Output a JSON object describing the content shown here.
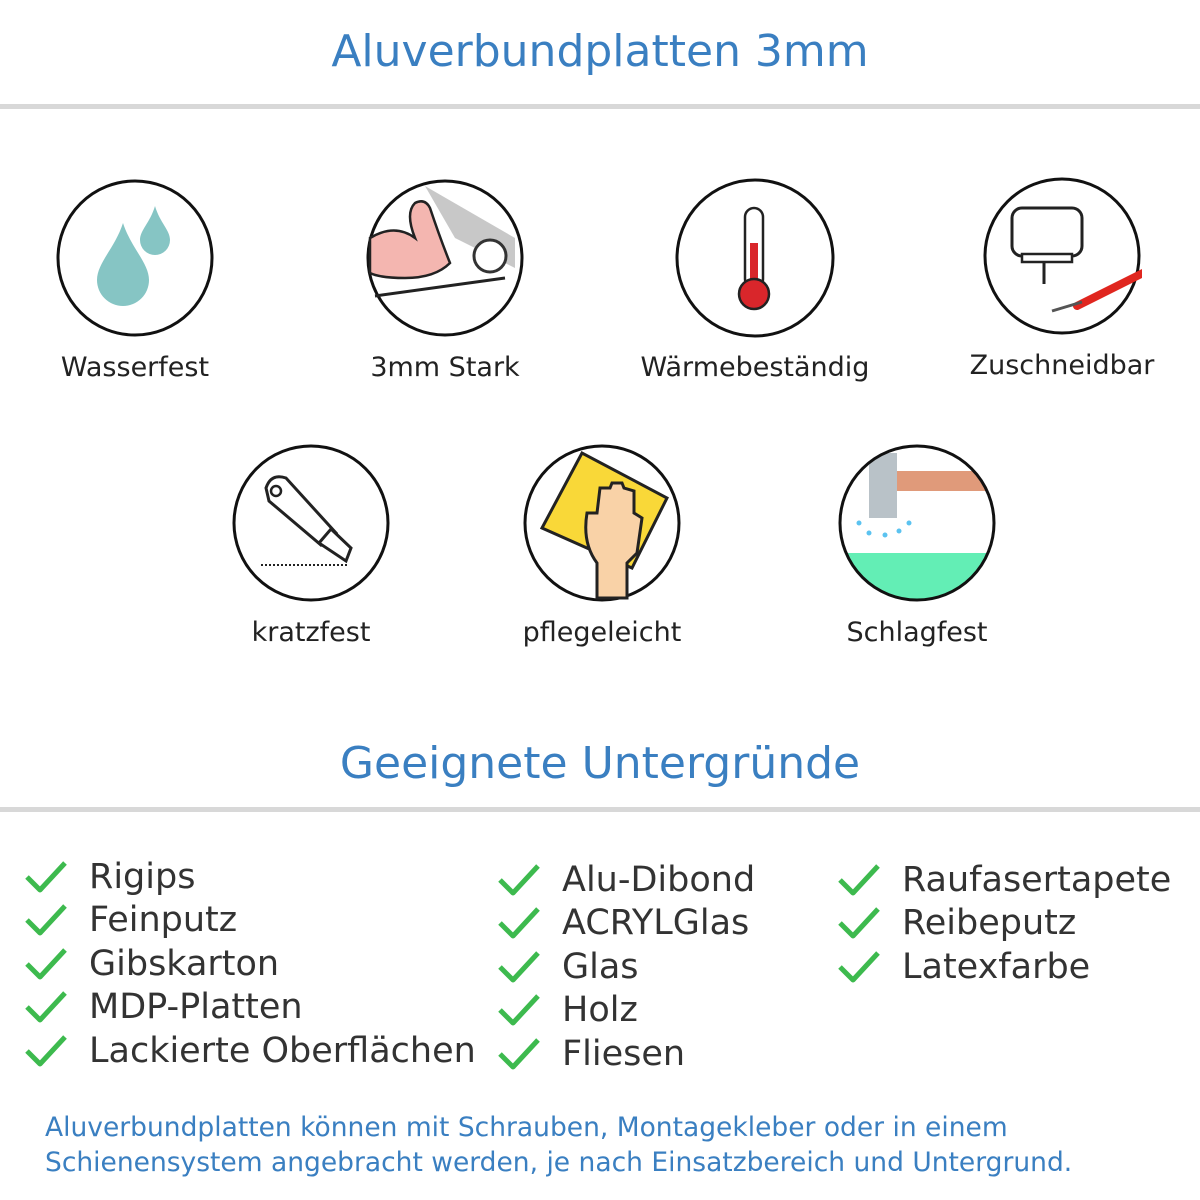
{
  "header": {
    "title": "Aluverbundplatten 3mm"
  },
  "features": [
    {
      "label": "Wasserfest",
      "icon": "water-drops-icon"
    },
    {
      "label": "3mm Stark",
      "icon": "strong-arm-icon"
    },
    {
      "label": "Wärmebeständig",
      "icon": "thermometer-icon"
    },
    {
      "label": "Zuschneidbar",
      "icon": "jigsaw-cutter-icon"
    },
    {
      "label": "kratzfest",
      "icon": "utility-knife-icon"
    },
    {
      "label": "pflegeleicht",
      "icon": "hand-sponge-icon"
    },
    {
      "label": "Schlagfest",
      "icon": "hammer-impact-icon"
    }
  ],
  "surfaces": {
    "title": "Geeignete Untergründe",
    "check_color": "#3dba4e",
    "columns": [
      [
        "Rigips",
        "Feinputz",
        "Gibskarton",
        "MDP-Platten",
        "Lackierte Oberflächen"
      ],
      [
        "Alu-Dibond",
        "ACRYLGlas",
        "Glas",
        "Holz",
        "Fliesen"
      ],
      [
        "Raufasertapete",
        "Reibeputz",
        "Latexfarbe"
      ]
    ]
  },
  "footer": {
    "line1": "Aluverbundplatten können mit Schrauben, Montagekleber oder in einem",
    "line2": "Schienensystem angebracht werden, je nach Einsatzbereich und Untergrund."
  },
  "colors": {
    "accent": "#3a7fc1",
    "text": "#333333",
    "separator": "#d8d8d8"
  }
}
